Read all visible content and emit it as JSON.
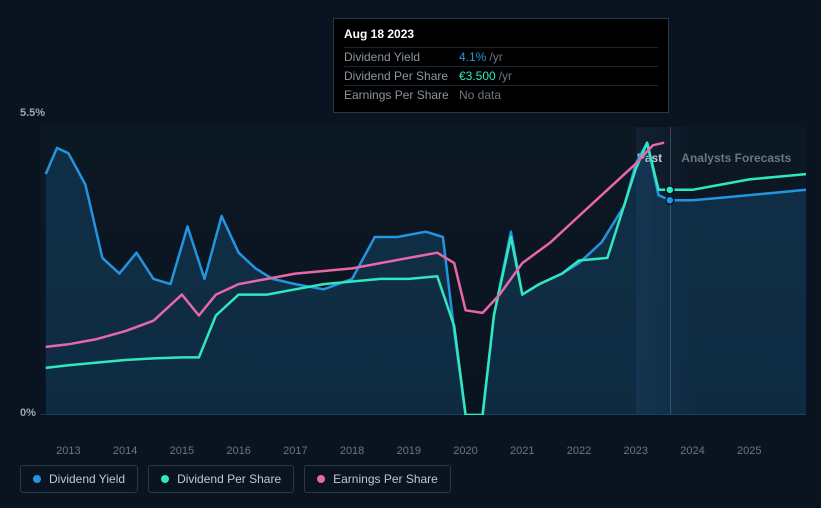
{
  "tooltip": {
    "date": "Aug 18 2023",
    "rows": [
      {
        "label": "Dividend Yield",
        "value": "4.1%",
        "unit": "/yr",
        "color": "#2394df"
      },
      {
        "label": "Dividend Per Share",
        "value": "€3.500",
        "unit": "/yr",
        "color": "#30e8bd"
      },
      {
        "label": "Earnings Per Share",
        "value": "No data",
        "unit": "",
        "color": "#6a7683"
      }
    ]
  },
  "chart": {
    "type": "line",
    "y_axis": {
      "max_label": "5.5%",
      "min_label": "0%",
      "ylim": [
        0,
        5.5
      ]
    },
    "x_axis": {
      "xlim": [
        2012.5,
        2026
      ],
      "ticks": [
        2013,
        2014,
        2015,
        2016,
        2017,
        2018,
        2019,
        2020,
        2021,
        2022,
        2023,
        2024,
        2025
      ]
    },
    "periods": {
      "past_label": "Past",
      "forecast_label": "Analysts Forecasts",
      "split_x": 2023.6
    },
    "hover_x": 2023.6,
    "background_color": "#0a1420",
    "grid_color": "#1e2d3d",
    "series": [
      {
        "name": "Dividend Yield",
        "color": "#2394df",
        "fill": true,
        "fill_color": "rgba(35,148,223,0.18)",
        "line_width": 2.5,
        "data": [
          [
            2012.6,
            4.6
          ],
          [
            2012.8,
            5.1
          ],
          [
            2013.0,
            5.0
          ],
          [
            2013.3,
            4.4
          ],
          [
            2013.6,
            3.0
          ],
          [
            2013.9,
            2.7
          ],
          [
            2014.2,
            3.1
          ],
          [
            2014.5,
            2.6
          ],
          [
            2014.8,
            2.5
          ],
          [
            2015.1,
            3.6
          ],
          [
            2015.4,
            2.6
          ],
          [
            2015.7,
            3.8
          ],
          [
            2016.0,
            3.1
          ],
          [
            2016.3,
            2.8
          ],
          [
            2016.6,
            2.6
          ],
          [
            2017.0,
            2.5
          ],
          [
            2017.5,
            2.4
          ],
          [
            2018.0,
            2.6
          ],
          [
            2018.4,
            3.4
          ],
          [
            2018.8,
            3.4
          ],
          [
            2019.3,
            3.5
          ],
          [
            2019.6,
            3.4
          ],
          [
            2019.8,
            1.6
          ],
          [
            2020.0,
            0.0
          ],
          [
            2020.3,
            0.0
          ],
          [
            2020.5,
            1.9
          ],
          [
            2020.8,
            3.5
          ],
          [
            2021.0,
            2.3
          ],
          [
            2021.3,
            2.5
          ],
          [
            2021.7,
            2.7
          ],
          [
            2022.0,
            2.9
          ],
          [
            2022.4,
            3.3
          ],
          [
            2022.8,
            4.0
          ],
          [
            2023.0,
            4.8
          ],
          [
            2023.2,
            5.2
          ],
          [
            2023.4,
            4.2
          ],
          [
            2023.6,
            4.1
          ],
          [
            2024.0,
            4.1
          ],
          [
            2024.5,
            4.15
          ],
          [
            2025.0,
            4.2
          ],
          [
            2025.5,
            4.25
          ],
          [
            2026.0,
            4.3
          ]
        ],
        "end_marker": {
          "x": 2023.6,
          "y": 4.1
        }
      },
      {
        "name": "Dividend Per Share",
        "color": "#30e8bd",
        "fill": false,
        "line_width": 2.5,
        "data": [
          [
            2012.6,
            0.9
          ],
          [
            2013.0,
            0.95
          ],
          [
            2013.5,
            1.0
          ],
          [
            2014.0,
            1.05
          ],
          [
            2014.5,
            1.08
          ],
          [
            2015.0,
            1.1
          ],
          [
            2015.3,
            1.1
          ],
          [
            2015.6,
            1.9
          ],
          [
            2016.0,
            2.3
          ],
          [
            2016.5,
            2.3
          ],
          [
            2017.0,
            2.4
          ],
          [
            2017.5,
            2.5
          ],
          [
            2018.0,
            2.55
          ],
          [
            2018.5,
            2.6
          ],
          [
            2019.0,
            2.6
          ],
          [
            2019.5,
            2.65
          ],
          [
            2019.8,
            1.7
          ],
          [
            2020.0,
            0.0
          ],
          [
            2020.3,
            0.0
          ],
          [
            2020.5,
            1.9
          ],
          [
            2020.8,
            3.4
          ],
          [
            2021.0,
            2.3
          ],
          [
            2021.3,
            2.5
          ],
          [
            2021.7,
            2.7
          ],
          [
            2022.0,
            2.95
          ],
          [
            2022.5,
            3.0
          ],
          [
            2023.0,
            4.7
          ],
          [
            2023.2,
            5.2
          ],
          [
            2023.4,
            4.3
          ],
          [
            2023.6,
            4.3
          ],
          [
            2024.0,
            4.3
          ],
          [
            2024.5,
            4.4
          ],
          [
            2025.0,
            4.5
          ],
          [
            2025.5,
            4.55
          ],
          [
            2026.0,
            4.6
          ]
        ],
        "end_marker": {
          "x": 2023.6,
          "y": 4.3
        }
      },
      {
        "name": "Earnings Per Share",
        "color": "#e867a8",
        "fill": false,
        "line_width": 2.5,
        "data": [
          [
            2012.6,
            1.3
          ],
          [
            2013.0,
            1.35
          ],
          [
            2013.5,
            1.45
          ],
          [
            2014.0,
            1.6
          ],
          [
            2014.5,
            1.8
          ],
          [
            2015.0,
            2.3
          ],
          [
            2015.3,
            1.9
          ],
          [
            2015.6,
            2.3
          ],
          [
            2016.0,
            2.5
          ],
          [
            2016.5,
            2.6
          ],
          [
            2017.0,
            2.7
          ],
          [
            2017.5,
            2.75
          ],
          [
            2018.0,
            2.8
          ],
          [
            2018.5,
            2.9
          ],
          [
            2019.0,
            3.0
          ],
          [
            2019.5,
            3.1
          ],
          [
            2019.8,
            2.9
          ],
          [
            2020.0,
            2.0
          ],
          [
            2020.3,
            1.95
          ],
          [
            2020.6,
            2.3
          ],
          [
            2021.0,
            2.9
          ],
          [
            2021.5,
            3.3
          ],
          [
            2022.0,
            3.8
          ],
          [
            2022.5,
            4.3
          ],
          [
            2023.0,
            4.8
          ],
          [
            2023.3,
            5.15
          ],
          [
            2023.5,
            5.2
          ]
        ]
      }
    ]
  },
  "legend": {
    "items": [
      {
        "label": "Dividend Yield",
        "color": "#2394df"
      },
      {
        "label": "Dividend Per Share",
        "color": "#30e8bd"
      },
      {
        "label": "Earnings Per Share",
        "color": "#e867a8"
      }
    ]
  }
}
